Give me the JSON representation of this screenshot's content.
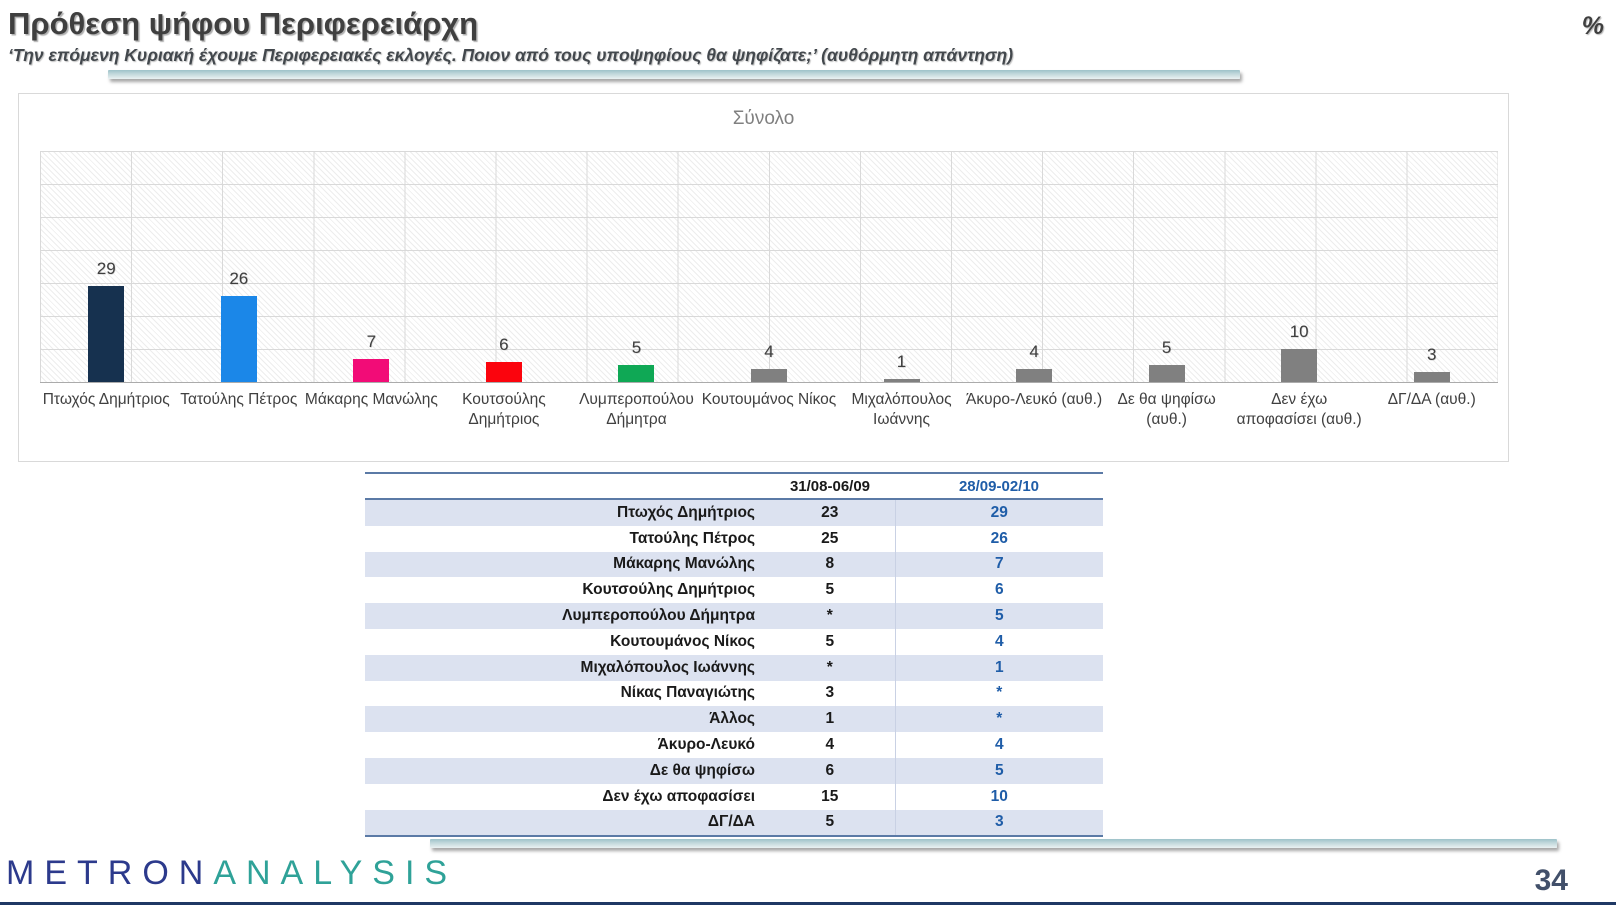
{
  "header": {
    "title": "Πρόθεση ψήφου Περιφερειάρχη",
    "subtitle": "‘Την επόμενη Κυριακή έχουμε Περιφερειακές εκλογές. Ποιον από τους υποψηφίους θα ψηφίζατε;’ (αυθόρμητη απάντηση)",
    "unit_label": "%"
  },
  "chart_data": {
    "type": "bar",
    "title": "Σύνολο",
    "unit": "%",
    "categories": [
      "Πτωχός Δημήτριος",
      "Τατούλης Πέτρος",
      "Μάκαρης Μανώλης",
      "Κουτσούλης Δημήτριος",
      "Λυμπεροπούλου Δήμητρα",
      "Κουτουμάνος Νίκος",
      "Μιχαλόπουλος Ιωάννης",
      "Άκυρο-Λευκό (αυθ.)",
      "Δε θα ψηφίσω (αυθ.)",
      "Δεν έχω αποφασίσει (αυθ.)",
      "ΔΓ/ΔΑ (αυθ.)"
    ],
    "values": [
      29,
      26,
      7,
      6,
      5,
      4,
      1,
      4,
      5,
      10,
      3
    ],
    "bar_colors": [
      "#16314f",
      "#1b87e8",
      "#f20c77",
      "#fb040d",
      "#0fa855",
      "#808080",
      "#808080",
      "#808080",
      "#808080",
      "#808080",
      "#808080"
    ],
    "ylim": [
      0,
      70
    ],
    "grid": true,
    "legend_position": "none",
    "xlabel": "",
    "ylabel": ""
  },
  "table": {
    "columns": [
      "31/08-06/09",
      "28/09-02/10"
    ],
    "rows": [
      {
        "label": "Πτωχός Δημήτριος",
        "values": [
          "23",
          "29"
        ]
      },
      {
        "label": "Τατούλης Πέτρος",
        "values": [
          "25",
          "26"
        ]
      },
      {
        "label": "Μάκαρης Μανώλης",
        "values": [
          "8",
          "7"
        ]
      },
      {
        "label": "Κουτσούλης Δημήτριος",
        "values": [
          "5",
          "6"
        ]
      },
      {
        "label": "Λυμπεροπούλου Δήμητρα",
        "values": [
          "*",
          "5"
        ]
      },
      {
        "label": "Κουτουμάνος Νίκος",
        "values": [
          "5",
          "4"
        ]
      },
      {
        "label": "Μιχαλόπουλος Ιωάννης",
        "values": [
          "*",
          "1"
        ]
      },
      {
        "label": "Νίκας Παναγιώτης",
        "values": [
          "3",
          "*"
        ]
      },
      {
        "label": "Άλλος",
        "values": [
          "1",
          "*"
        ]
      },
      {
        "label": "Άκυρο-Λευκό",
        "values": [
          "4",
          "4"
        ]
      },
      {
        "label": "Δε θα ψηφίσω",
        "values": [
          "6",
          "5"
        ]
      },
      {
        "label": "Δεν έχω αποφασίσει",
        "values": [
          "15",
          "10"
        ]
      },
      {
        "label": "ΔΓ/ΔΑ",
        "values": [
          "5",
          "3"
        ]
      }
    ]
  },
  "footer": {
    "logo_primary": "METRON",
    "logo_secondary": "ANALYSIS",
    "page_number": "34"
  },
  "colors": {
    "accent_bar_teal": "#9dc2c9",
    "table_border_blue": "#5b7aa6",
    "table_stripe": "#dce2f0",
    "table_value_blue": "#1f5da8",
    "footer_rule_navy": "#1f3864"
  }
}
